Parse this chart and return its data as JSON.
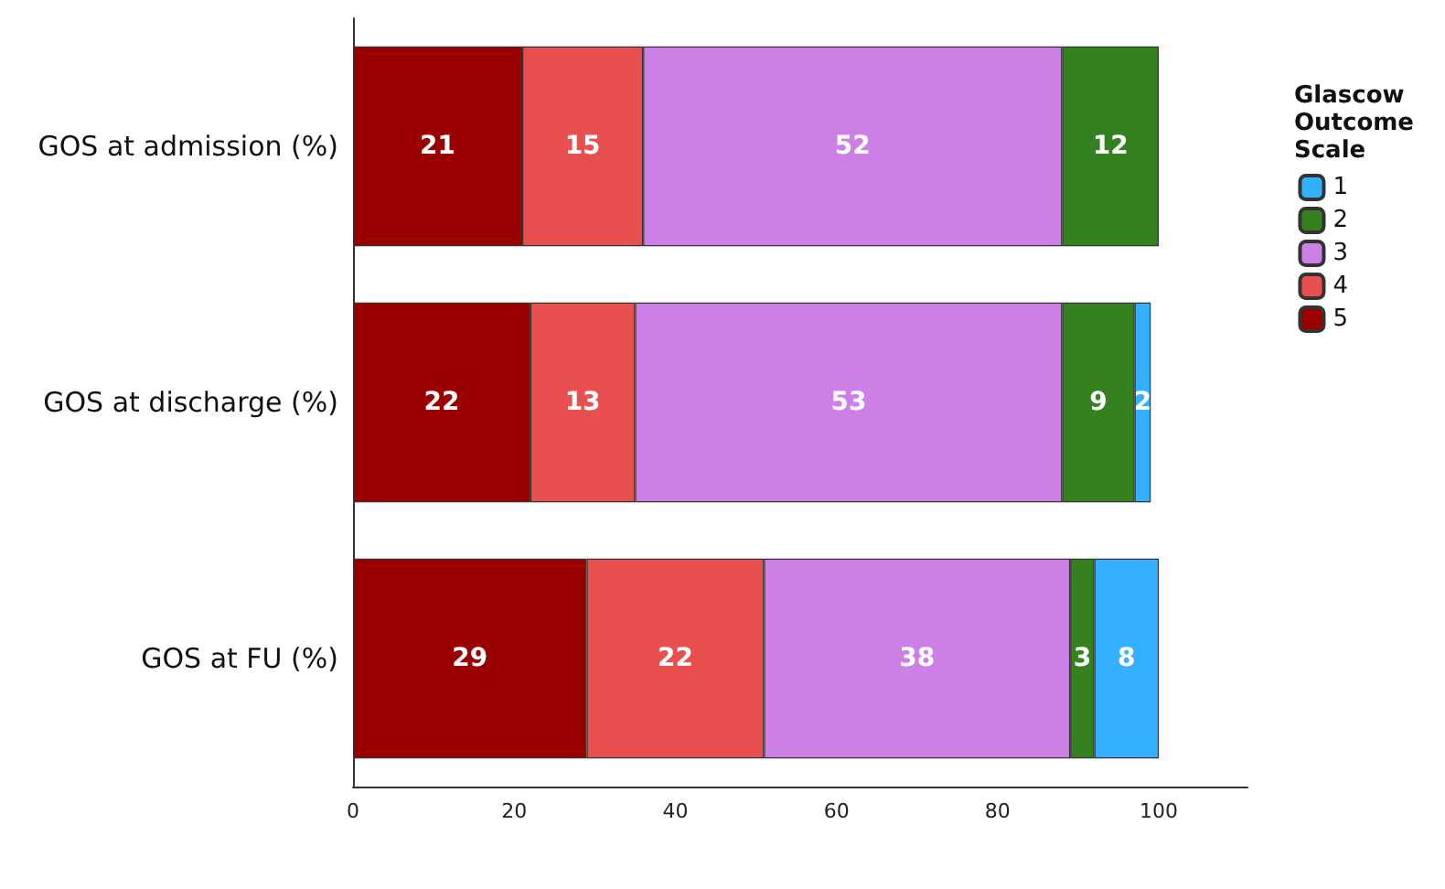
{
  "chart_data": {
    "type": "bar",
    "orientation": "horizontal",
    "stacked": true,
    "data_labels": true,
    "legend": "top right",
    "legend_title": "Glascow Outcome Scale",
    "categories": [
      "GOS at admission (%)",
      "GOS at discharge (%)",
      "GOS at FU (%)"
    ],
    "series": [
      {
        "name": "5",
        "color": "#990000",
        "values": [
          21,
          22,
          29
        ]
      },
      {
        "name": "4",
        "color": "#e85050",
        "values": [
          15,
          13,
          22
        ]
      },
      {
        "name": "3",
        "color": "#cc80e6",
        "values": [
          52,
          53,
          38
        ]
      },
      {
        "name": "2",
        "color": "#35801f",
        "values": [
          12,
          9,
          3
        ]
      },
      {
        "name": "1",
        "color": "#33b0ff",
        "values": [
          null,
          2,
          8
        ]
      }
    ],
    "xlim": [
      0,
      111
    ],
    "xticks": [
      0,
      20,
      40,
      60,
      80,
      100
    ],
    "grid": false
  }
}
